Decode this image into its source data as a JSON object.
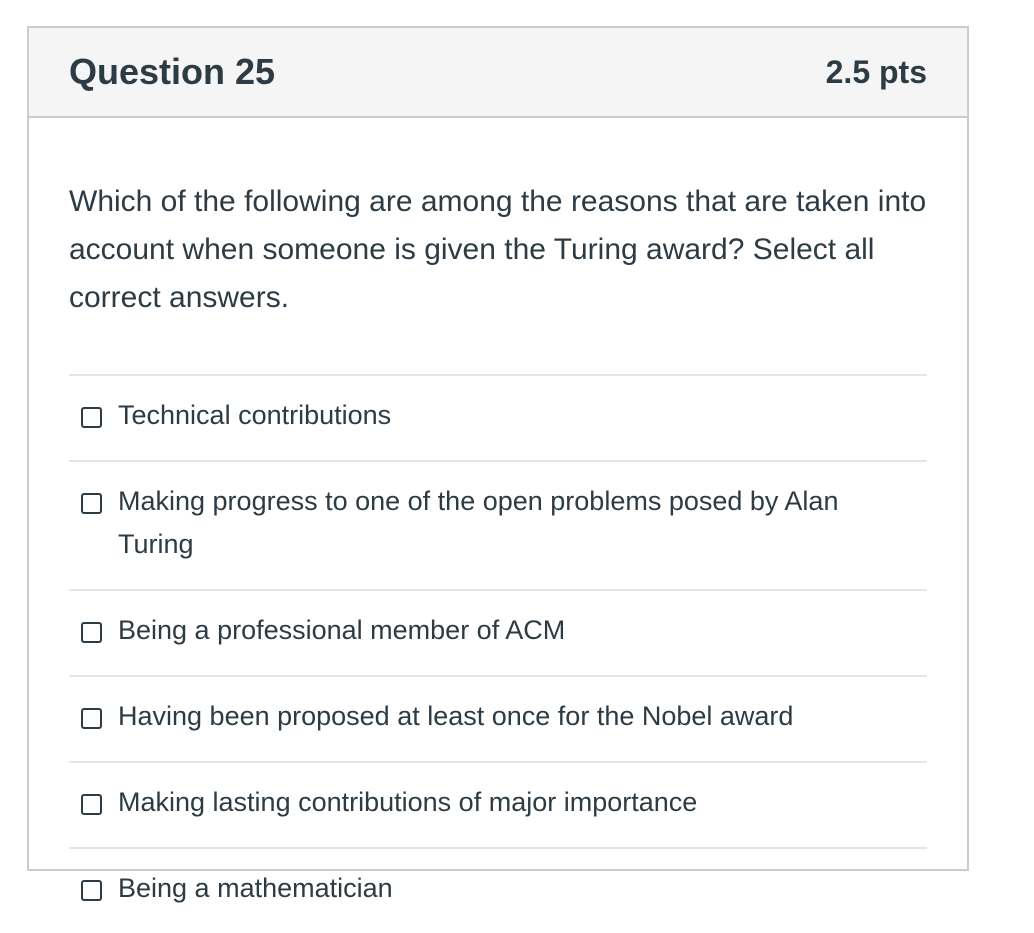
{
  "question": {
    "title": "Question 25",
    "points": "2.5 pts",
    "text": "Which of the following are among the reasons that are taken into account when someone is given the Turing award? Select all correct answers."
  },
  "answers": [
    {
      "label": "Technical contributions",
      "checked": false
    },
    {
      "label": "Making progress to one of the open problems posed by Alan Turing",
      "checked": false
    },
    {
      "label": "Being a professional member of ACM",
      "checked": false
    },
    {
      "label": "Having been proposed at least once for the Nobel award",
      "checked": false
    },
    {
      "label": "Making lasting contributions of major importance",
      "checked": false
    },
    {
      "label": "Being a mathematician",
      "checked": false
    }
  ],
  "colors": {
    "text": "#2d3b45",
    "header_bg": "#f5f5f5",
    "border": "#c7cdd1",
    "divider": "#e2e6e8"
  }
}
